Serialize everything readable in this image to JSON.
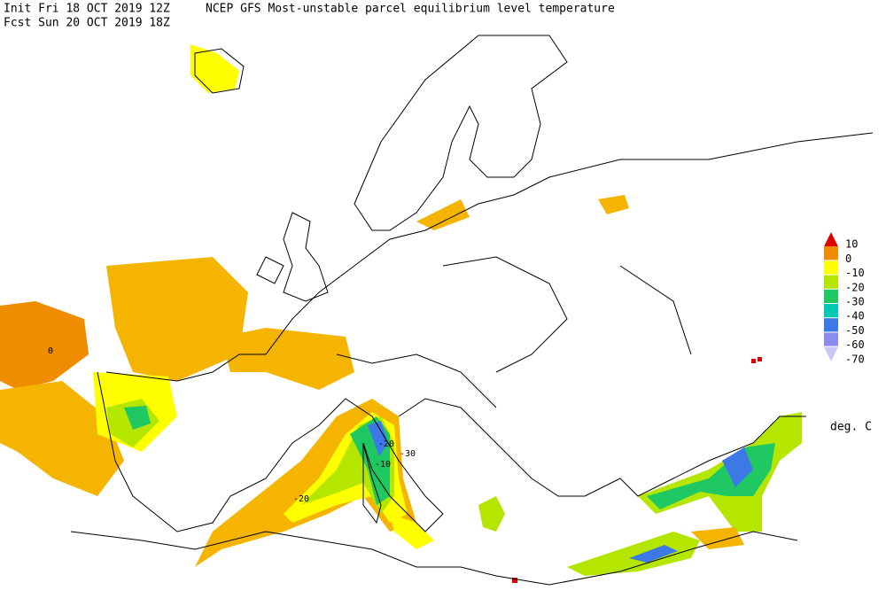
{
  "header": {
    "init": "Init  Fri 18 OCT 2019 12Z",
    "title": "NCEP GFS Most-unstable parcel equilibrium level temperature",
    "forecast": "Fcst Sun 20 OCT 2019 18Z"
  },
  "legend": {
    "unit": "deg. C",
    "items": [
      {
        "label": 10,
        "color": "#e00000"
      },
      {
        "label": 0,
        "color": "#f08c00"
      },
      {
        "label": -10,
        "color": "#ffff00"
      },
      {
        "label": -20,
        "color": "#b4e600"
      },
      {
        "label": -30,
        "color": "#20c864"
      },
      {
        "label": -40,
        "color": "#00c8b4"
      },
      {
        "label": -50,
        "color": "#3c78e6"
      },
      {
        "label": -60,
        "color": "#8c8cf0"
      },
      {
        "label": -70,
        "color": "#c8c8f5"
      }
    ]
  },
  "contour_labels": [
    "0",
    "-20",
    "-30",
    "-10",
    "-20"
  ]
}
